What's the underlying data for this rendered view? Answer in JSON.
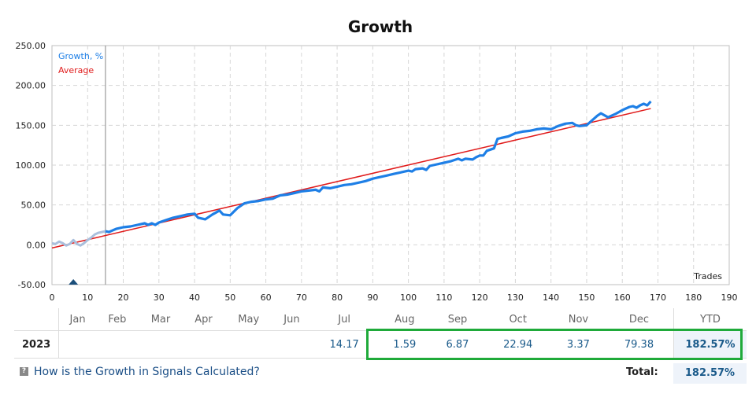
{
  "chart_data": {
    "type": "line",
    "title": "Growth",
    "xlabel": "Trades",
    "ylabel": "",
    "xlim": [
      0,
      190
    ],
    "ylim": [
      -50,
      250
    ],
    "x_ticks": [
      0,
      10,
      20,
      30,
      40,
      50,
      60,
      70,
      80,
      90,
      100,
      110,
      120,
      130,
      140,
      150,
      160,
      170,
      180,
      190
    ],
    "y_ticks": [
      -50,
      0,
      50,
      100,
      150,
      200,
      250
    ],
    "y_tick_labels": [
      "-50.00",
      "0.00",
      "50.00",
      "100.00",
      "150.00",
      "200.00",
      "250.00"
    ],
    "grid": true,
    "legend_position": "top-left",
    "vertical_marker_x": 15,
    "marker_triangle_x": 6,
    "series": [
      {
        "name": "Growth, %",
        "color": "#1e7fe6",
        "pre_color": "#aabfdc",
        "pre_until_x": 15,
        "x": [
          0,
          1,
          2,
          3,
          4,
          5,
          6,
          7,
          8,
          9,
          10,
          11,
          12,
          13,
          14,
          15,
          16,
          17,
          18,
          20,
          22,
          24,
          26,
          27,
          28,
          29,
          30,
          32,
          34,
          36,
          38,
          40,
          41,
          43,
          45,
          47,
          48,
          50,
          52,
          54,
          56,
          58,
          60,
          62,
          64,
          66,
          68,
          70,
          72,
          74,
          75,
          76,
          78,
          80,
          82,
          84,
          86,
          88,
          90,
          92,
          94,
          96,
          98,
          100,
          101,
          102,
          104,
          105,
          106,
          108,
          110,
          112,
          114,
          115,
          116,
          118,
          119,
          120,
          121,
          122,
          124,
          125,
          126,
          128,
          130,
          132,
          134,
          136,
          138,
          140,
          142,
          144,
          146,
          147,
          148,
          150,
          152,
          153,
          154,
          156,
          158,
          160,
          162,
          163,
          164,
          165,
          166,
          167,
          168
        ],
        "y": [
          2,
          1,
          4,
          2,
          -1,
          1,
          6,
          1,
          -1,
          2,
          6,
          9,
          13,
          15,
          16,
          17,
          16,
          18,
          20,
          22,
          23,
          25,
          27,
          25,
          27,
          25,
          28,
          31,
          34,
          36,
          38,
          39,
          34,
          32,
          38,
          43,
          38,
          37,
          46,
          52,
          54,
          55,
          57,
          58,
          62,
          63,
          65,
          67,
          68,
          69,
          67,
          72,
          71,
          73,
          75,
          76,
          78,
          80,
          83,
          85,
          87,
          89,
          91,
          93,
          92,
          95,
          96,
          94,
          99,
          101,
          103,
          105,
          108,
          106,
          108,
          107,
          110,
          112,
          112,
          118,
          121,
          133,
          134,
          136,
          140,
          142,
          143,
          145,
          146,
          145,
          149,
          152,
          153,
          150,
          149,
          150,
          158,
          162,
          165,
          160,
          164,
          169,
          173,
          174,
          172,
          175,
          177,
          175,
          180
        ],
        "raw_note_removed": true
      },
      {
        "name": "Average",
        "color": "#e01b1b",
        "x": [
          0,
          168
        ],
        "y": [
          -4,
          171
        ]
      }
    ]
  },
  "table": {
    "months": [
      "Jan",
      "Feb",
      "Mar",
      "Apr",
      "May",
      "Jun",
      "Jul",
      "Aug",
      "Sep",
      "Oct",
      "Nov",
      "Dec"
    ],
    "ytd_header": "YTD",
    "rows": [
      {
        "year": "2023",
        "values": [
          "",
          "",
          "",
          "",
          "",
          "",
          "14.17",
          "1.59",
          "6.87",
          "22.94",
          "3.37",
          "79.38"
        ],
        "ytd": "182.57%"
      }
    ],
    "total_label": "Total:",
    "total_value": "182.57%"
  },
  "footer": {
    "link_text": "How is the Growth in Signals Calculated?",
    "icon": "info-icon"
  },
  "colors": {
    "highlight_box": "#1faa3a",
    "grid": "#d6d6d6",
    "axis_marker": "#1a4e7a"
  }
}
